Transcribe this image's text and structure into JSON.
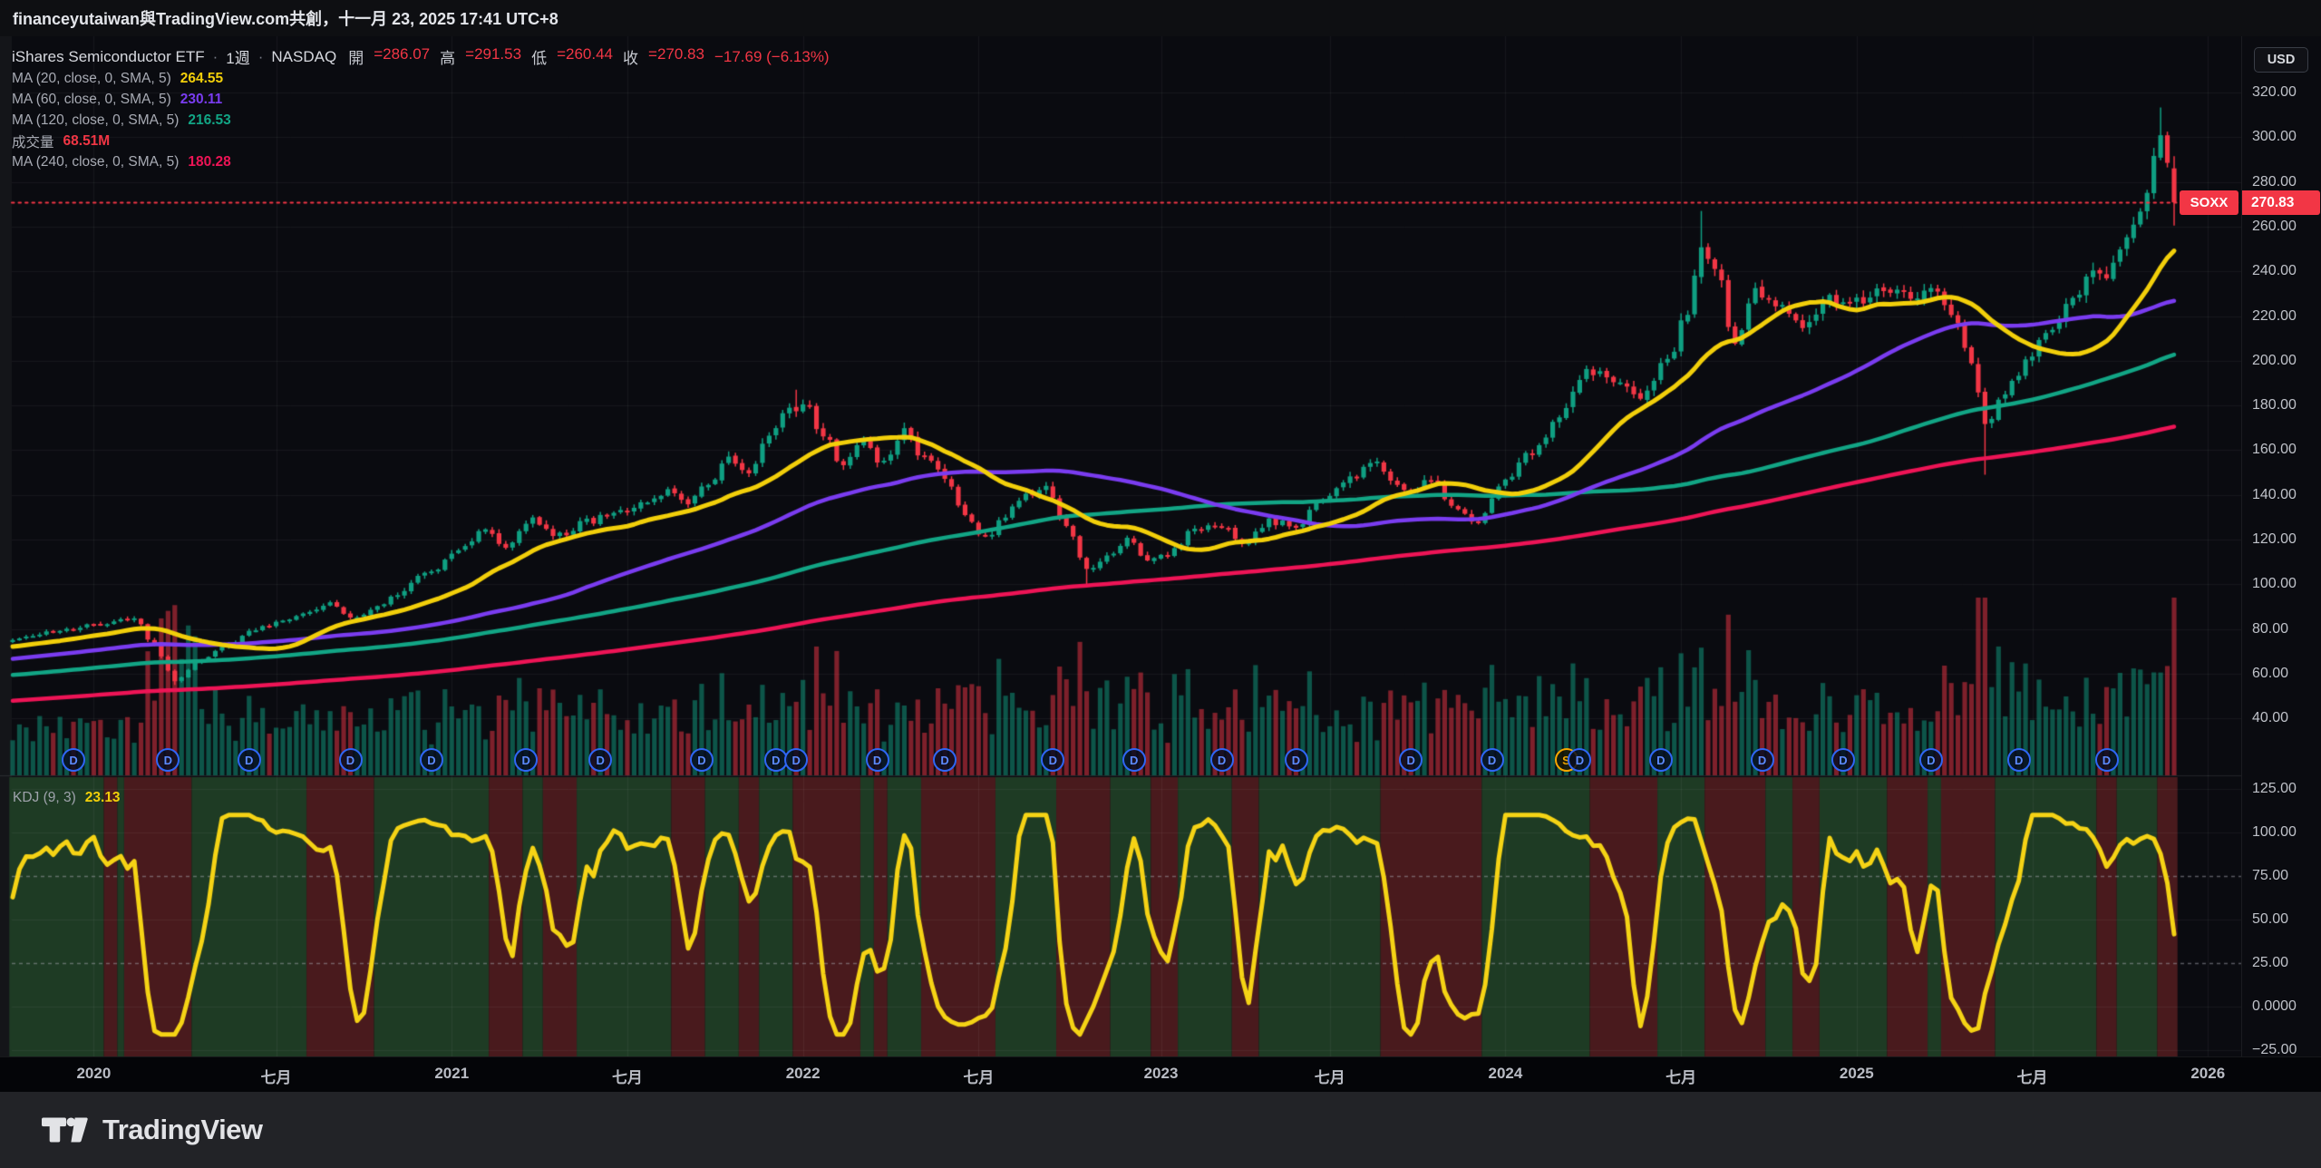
{
  "header": {
    "attribution": "financeyutaiwan與TradingView.com共創，十一月 23, 2025 17:41 UTC+8"
  },
  "legend": {
    "symbol_row": {
      "title": "iShares Semiconductor ETF",
      "separator": "·",
      "interval": "1週",
      "exchange": "NASDAQ",
      "ohlc": [
        {
          "label": "開",
          "value": "=286.07"
        },
        {
          "label": "高",
          "value": "=291.53"
        },
        {
          "label": "低",
          "value": "=260.44"
        },
        {
          "label": "收",
          "value": "=270.83"
        }
      ],
      "change": "−17.69 (−6.13%)"
    },
    "rows": [
      {
        "label": "MA (20, close, 0, SMA, 5)",
        "value": "264.55",
        "color": "#f2cf0a"
      },
      {
        "label": "MA (60, close, 0, SMA, 5)",
        "value": "230.11",
        "color": "#7a3cf0"
      },
      {
        "label": "MA (120, close, 0, SMA, 5)",
        "value": "216.53",
        "color": "#12a585"
      },
      {
        "label": "成交量",
        "value": "68.51M",
        "color": "#f23645"
      },
      {
        "label": "MA (240, close, 0, SMA, 5)",
        "value": "180.28",
        "color": "#ee1456"
      }
    ]
  },
  "kdj_legend": {
    "label": "KDJ (9, 3)",
    "value": "23.13",
    "value_color": "#f2cf0a"
  },
  "price_axis": {
    "currency": "USD",
    "ticks": [
      {
        "v": 320,
        "label": "320.00"
      },
      {
        "v": 300,
        "label": "300.00"
      },
      {
        "v": 280,
        "label": "280.00"
      },
      {
        "v": 260,
        "label": "260.00"
      },
      {
        "v": 240,
        "label": "240.00"
      },
      {
        "v": 220,
        "label": "220.00"
      },
      {
        "v": 200,
        "label": "200.00"
      },
      {
        "v": 180,
        "label": "180.00"
      },
      {
        "v": 160,
        "label": "160.00"
      },
      {
        "v": 140,
        "label": "140.00"
      },
      {
        "v": 120,
        "label": "120.00"
      },
      {
        "v": 100,
        "label": "100.00"
      },
      {
        "v": 80,
        "label": "80.00"
      },
      {
        "v": 60,
        "label": "60.00"
      },
      {
        "v": 40,
        "label": "40.00"
      }
    ],
    "last_price_label": "270.83",
    "symbol_tag": "SOXX"
  },
  "kdj_axis": {
    "ticks": [
      {
        "v": 125,
        "label": "125.00"
      },
      {
        "v": 100,
        "label": "100.00"
      },
      {
        "v": 75,
        "label": "75.00"
      },
      {
        "v": 50,
        "label": "50.00"
      },
      {
        "v": 25,
        "label": "25.00"
      },
      {
        "v": 0,
        "label": "0.0000"
      },
      {
        "v": -25,
        "label": "−25.00"
      }
    ]
  },
  "time_axis": {
    "labels": [
      {
        "text": "2020",
        "week": 12
      },
      {
        "text": "七月",
        "week": 39
      },
      {
        "text": "2021",
        "week": 65
      },
      {
        "text": "七月",
        "week": 91
      },
      {
        "text": "2022",
        "week": 117
      },
      {
        "text": "七月",
        "week": 143
      },
      {
        "text": "2023",
        "week": 170
      },
      {
        "text": "七月",
        "week": 195
      },
      {
        "text": "2024",
        "week": 221
      },
      {
        "text": "七月",
        "week": 247
      },
      {
        "text": "2025",
        "week": 273
      },
      {
        "text": "七月",
        "week": 299
      },
      {
        "text": "2026",
        "week": 325
      }
    ]
  },
  "markers": [
    {
      "week": 9,
      "type": "D"
    },
    {
      "week": 23,
      "type": "D"
    },
    {
      "week": 35,
      "type": "D"
    },
    {
      "week": 50,
      "type": "D"
    },
    {
      "week": 62,
      "type": "D"
    },
    {
      "week": 76,
      "type": "D"
    },
    {
      "week": 87,
      "type": "D"
    },
    {
      "week": 102,
      "type": "D"
    },
    {
      "week": 113,
      "type": "D"
    },
    {
      "week": 116,
      "type": "D"
    },
    {
      "week": 128,
      "type": "D"
    },
    {
      "week": 138,
      "type": "D"
    },
    {
      "week": 154,
      "type": "D"
    },
    {
      "week": 166,
      "type": "D"
    },
    {
      "week": 179,
      "type": "D"
    },
    {
      "week": 190,
      "type": "D"
    },
    {
      "week": 207,
      "type": "D"
    },
    {
      "week": 219,
      "type": "D"
    },
    {
      "week": 230,
      "type": "S"
    },
    {
      "week": 232,
      "type": "D"
    },
    {
      "week": 244,
      "type": "D"
    },
    {
      "week": 259,
      "type": "D"
    },
    {
      "week": 271,
      "type": "D"
    },
    {
      "week": 284,
      "type": "D"
    },
    {
      "week": 297,
      "type": "D"
    },
    {
      "week": 310,
      "type": "D"
    }
  ],
  "footer": {
    "brand": "TradingView"
  },
  "chart_data": {
    "type": "candlestick",
    "symbol": "SOXX",
    "name": "iShares Semiconductor ETF",
    "exchange": "NASDAQ",
    "interval": "1週 (weekly)",
    "currency": "USD",
    "title": "iShares Semiconductor ETF · 1週 · NASDAQ",
    "last_bar": {
      "open": 286.07,
      "high": 291.53,
      "low": 260.44,
      "close": 270.83,
      "change": -17.69,
      "change_pct": -6.13
    },
    "prev_close": 288.52,
    "indicators": {
      "ma20": 264.55,
      "ma60": 230.11,
      "ma120": 216.53,
      "ma240": 180.28,
      "volume_last": "68.51M",
      "kdj": {
        "params": "(9, 3)",
        "value": 23.13
      }
    },
    "price_axis_range": [
      40,
      320
    ],
    "kdj_axis_range": [
      -25,
      125
    ],
    "kdj_dashed_levels": [
      75,
      25
    ],
    "last_price_line": 270.83,
    "weeks_total": 321,
    "weekly_close_keypoints": [
      [
        0,
        75
      ],
      [
        6,
        79
      ],
      [
        13,
        82
      ],
      [
        18,
        85
      ],
      [
        21,
        72
      ],
      [
        24,
        57
      ],
      [
        28,
        66
      ],
      [
        32,
        73
      ],
      [
        36,
        80
      ],
      [
        40,
        84
      ],
      [
        44,
        88
      ],
      [
        47,
        91
      ],
      [
        50,
        85
      ],
      [
        53,
        88
      ],
      [
        57,
        96
      ],
      [
        61,
        104
      ],
      [
        66,
        114
      ],
      [
        70,
        126
      ],
      [
        73,
        117
      ],
      [
        77,
        129
      ],
      [
        81,
        122
      ],
      [
        85,
        128
      ],
      [
        89,
        131
      ],
      [
        93,
        136
      ],
      [
        97,
        141
      ],
      [
        100,
        137
      ],
      [
        103,
        145
      ],
      [
        106,
        156
      ],
      [
        109,
        149
      ],
      [
        112,
        166
      ],
      [
        115,
        178
      ],
      [
        117,
        181
      ],
      [
        120,
        167
      ],
      [
        123,
        153
      ],
      [
        126,
        163
      ],
      [
        129,
        154
      ],
      [
        132,
        168
      ],
      [
        135,
        156
      ],
      [
        138,
        148
      ],
      [
        141,
        132
      ],
      [
        144,
        121
      ],
      [
        147,
        131
      ],
      [
        150,
        140
      ],
      [
        153,
        143
      ],
      [
        156,
        127
      ],
      [
        159,
        106
      ],
      [
        162,
        113
      ],
      [
        165,
        120
      ],
      [
        168,
        111
      ],
      [
        171,
        114
      ],
      [
        175,
        124
      ],
      [
        179,
        127
      ],
      [
        182,
        118
      ],
      [
        186,
        128
      ],
      [
        190,
        126
      ],
      [
        194,
        139
      ],
      [
        198,
        148
      ],
      [
        202,
        154
      ],
      [
        206,
        141
      ],
      [
        210,
        146
      ],
      [
        214,
        133
      ],
      [
        217,
        128
      ],
      [
        221,
        148
      ],
      [
        225,
        159
      ],
      [
        229,
        174
      ],
      [
        233,
        196
      ],
      [
        237,
        192
      ],
      [
        241,
        184
      ],
      [
        245,
        200
      ],
      [
        248,
        221
      ],
      [
        250,
        251
      ],
      [
        252,
        243
      ],
      [
        255,
        209
      ],
      [
        258,
        231
      ],
      [
        261,
        226
      ],
      [
        265,
        217
      ],
      [
        269,
        228
      ],
      [
        273,
        226
      ],
      [
        277,
        233
      ],
      [
        281,
        228
      ],
      [
        284,
        232
      ],
      [
        287,
        220
      ],
      [
        290,
        198
      ],
      [
        292,
        171
      ],
      [
        294,
        181
      ],
      [
        296,
        191
      ],
      [
        298,
        200
      ],
      [
        300,
        208
      ],
      [
        302,
        215
      ],
      [
        304,
        223
      ],
      [
        306,
        230
      ],
      [
        308,
        240
      ],
      [
        310,
        236
      ],
      [
        312,
        250
      ],
      [
        314,
        262
      ],
      [
        316,
        274
      ],
      [
        318,
        303
      ],
      [
        319,
        288.52
      ],
      [
        320,
        270.83
      ]
    ],
    "extremes": [
      {
        "week": 24,
        "low": 55
      },
      {
        "week": 116,
        "high": 187
      },
      {
        "week": 159,
        "low": 99
      },
      {
        "week": 250,
        "high": 267
      },
      {
        "week": 292,
        "low": 149
      },
      {
        "week": 318,
        "high": 313.3
      }
    ],
    "colors": {
      "up": "#0f9f82",
      "down": "#f23645",
      "ma20": "#f2cf0a",
      "ma60": "#7a3cf0",
      "ma120": "#12a585",
      "ma240": "#ee1456",
      "kdj_line": "#f5d315",
      "stripe_green": "#1e3b24",
      "stripe_red": "#491a1d",
      "last_price_line": "#f23645"
    }
  }
}
